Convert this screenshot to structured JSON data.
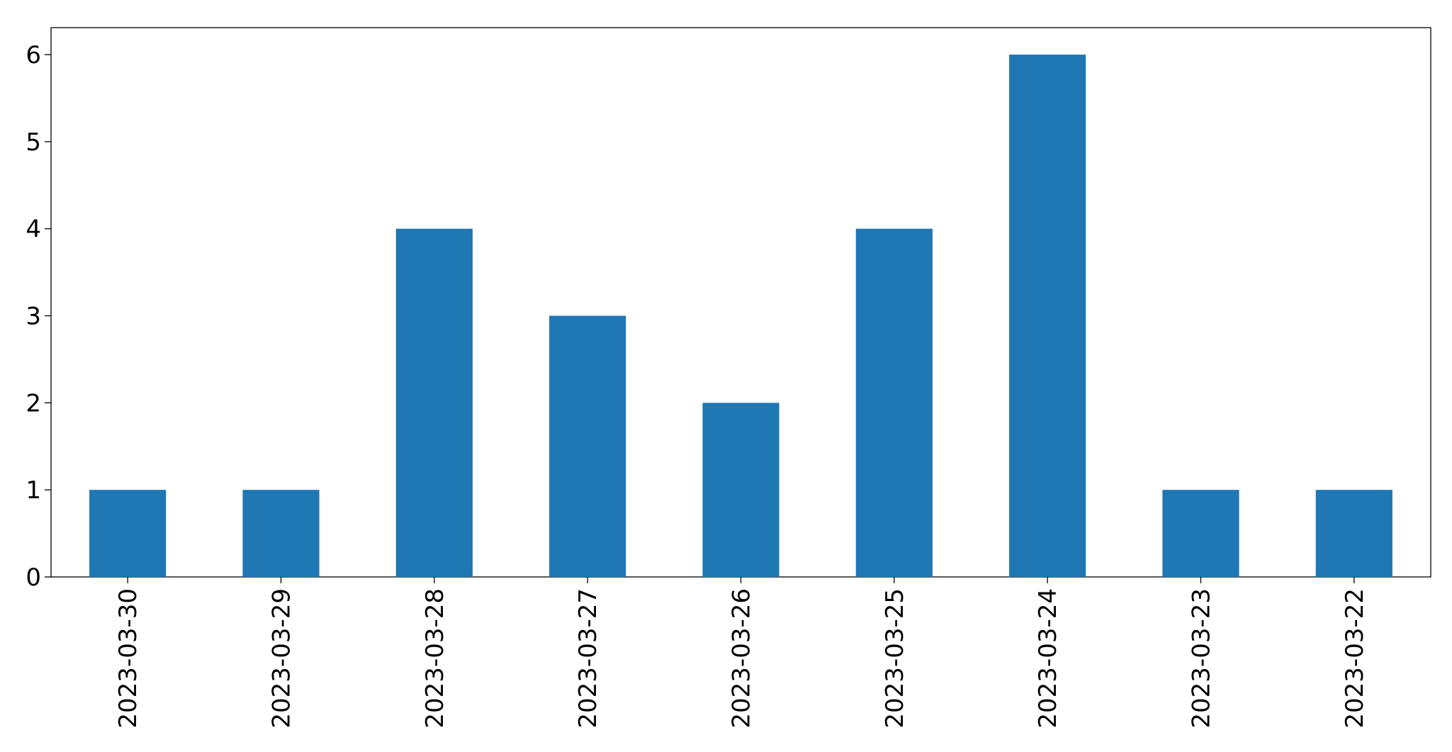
{
  "chart_data": {
    "type": "bar",
    "categories": [
      "2023-03-30",
      "2023-03-29",
      "2023-03-28",
      "2023-03-27",
      "2023-03-26",
      "2023-03-25",
      "2023-03-24",
      "2023-03-23",
      "2023-03-22"
    ],
    "values": [
      1,
      1,
      4,
      3,
      2,
      4,
      6,
      1,
      1
    ],
    "color": "#1f77b4",
    "ylim": [
      0,
      6.31
    ],
    "yticks": [
      0,
      1,
      2,
      3,
      4,
      5,
      6
    ],
    "grid": false
  }
}
